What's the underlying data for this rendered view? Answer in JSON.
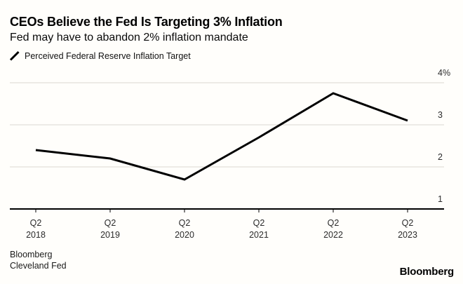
{
  "header": {
    "title": "CEOs Believe the Fed Is Targeting 3% Inflation",
    "subtitle": "Fed may have to abandon 2% inflation mandate"
  },
  "legend": {
    "marker": "line-swatch",
    "label": "Perceived Federal Reserve Inflation Target"
  },
  "chart_data": {
    "type": "line",
    "title": "CEOs Believe the Fed Is Targeting 3% Inflation",
    "subtitle": "Fed may have to abandon 2% inflation mandate",
    "categories": [
      {
        "quarter": "Q2",
        "year": "2018"
      },
      {
        "quarter": "Q2",
        "year": "2019"
      },
      {
        "quarter": "Q2",
        "year": "2020"
      },
      {
        "quarter": "Q2",
        "year": "2021"
      },
      {
        "quarter": "Q2",
        "year": "2022"
      },
      {
        "quarter": "Q2",
        "year": "2023"
      }
    ],
    "series": [
      {
        "name": "Perceived Federal Reserve Inflation Target",
        "color": "#000000",
        "values": [
          2.4,
          2.2,
          1.7,
          2.7,
          3.75,
          3.1
        ]
      }
    ],
    "ylim": [
      1,
      4
    ],
    "yticks": [
      {
        "value": 1,
        "label": "1"
      },
      {
        "value": 2,
        "label": "2"
      },
      {
        "value": 3,
        "label": "3"
      },
      {
        "value": 4,
        "label": "4%"
      }
    ],
    "grid": "horizontal",
    "legend_position": "top-left",
    "ylabel": "",
    "xlabel": ""
  },
  "footer": {
    "source_line1": "Bloomberg",
    "source_line2": "Cleveland Fed",
    "logo": "Bloomberg"
  },
  "colors": {
    "line": "#000000",
    "gridline": "#dbd8d2",
    "axis": "#000000",
    "tick_label": "#2b2b2b",
    "background": "#fffefb"
  }
}
